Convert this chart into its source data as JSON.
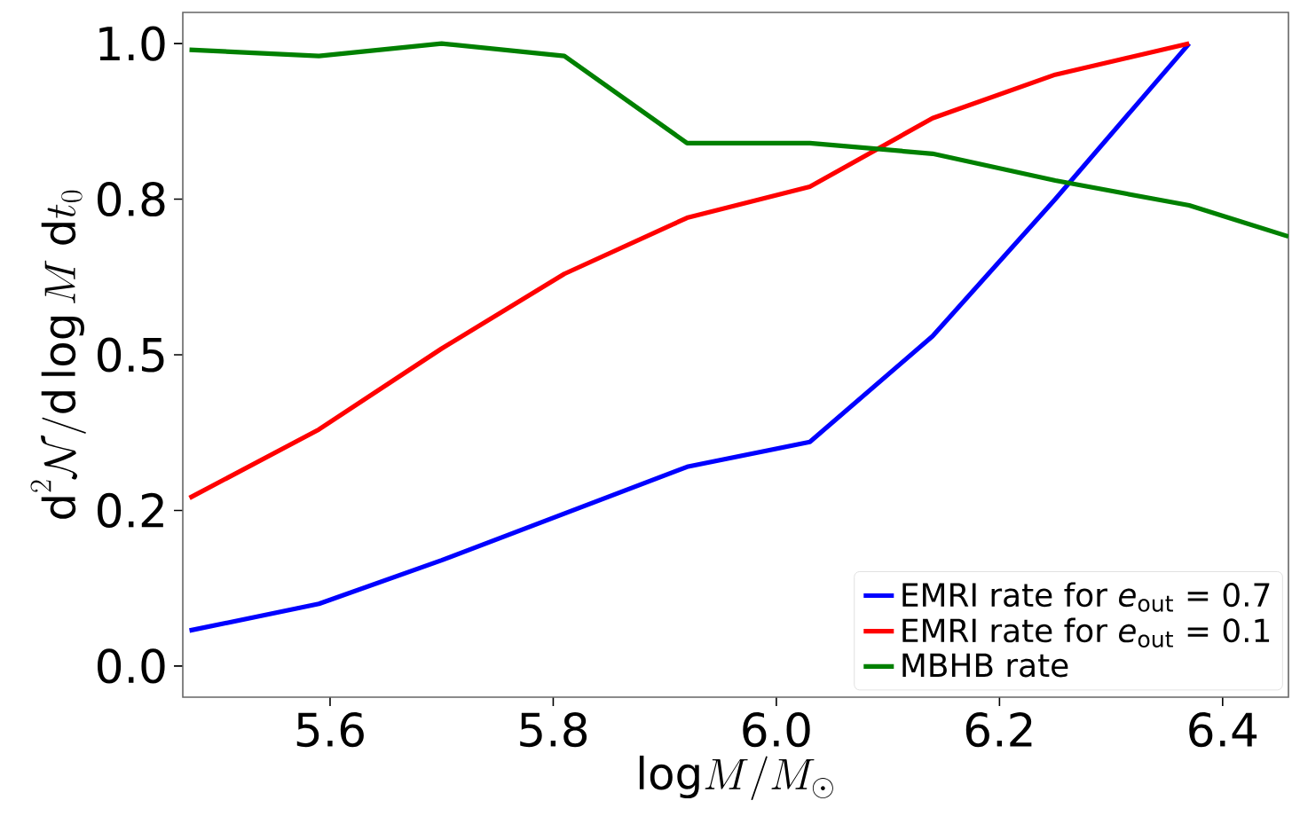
{
  "chart_data": {
    "type": "line",
    "xlabel": "\\mathrm{log}M/M_{\\odot}",
    "ylabel": "\\mathrm{d}^2\\mathcal{N}/\\mathrm{d}\\log M\\;\\mathrm{d}t_0",
    "x": [
      5.474,
      5.59,
      5.7,
      5.81,
      5.92,
      6.03,
      6.14,
      6.25,
      6.37
    ],
    "series": [
      {
        "name": "EMRI rate for *e*$_{out}$ = 0.7",
        "color": "#0000ff",
        "values": [
          0.057,
          0.1,
          0.17,
          0.245,
          0.32,
          0.36,
          0.53,
          0.75,
          1.0
        ]
      },
      {
        "name": "EMRI rate for *e*$_{out}$ = 0.1",
        "color": "#ff0000",
        "values": [
          0.27,
          0.38,
          0.51,
          0.63,
          0.72,
          0.77,
          0.88,
          0.95,
          1.0
        ]
      },
      {
        "name": "MBHB rate",
        "color": "#008000",
        "x": [
          5.474,
          5.59,
          5.7,
          5.81,
          5.92,
          6.03,
          6.14,
          6.25,
          6.37,
          6.459
        ],
        "values": [
          0.99,
          0.98,
          1.0,
          0.98,
          0.84,
          0.84,
          0.823,
          0.78,
          0.74,
          0.69
        ]
      }
    ],
    "xlim": [
      5.468,
      6.459
    ],
    "ylim": [
      -0.05,
      1.05
    ],
    "xticks": [
      5.6,
      5.8,
      {
        "value": 6.0,
        "label": "6.0"
      },
      6.2,
      6.4
    ],
    "yticks": [
      {
        "value": 0.0,
        "label": "0.0"
      },
      {
        "value": 0.25,
        "label": "0.2"
      },
      {
        "value": 0.5,
        "label": "0.5"
      },
      {
        "value": 0.75,
        "label": "0.8"
      },
      {
        "value": 1.0,
        "label": "1.0"
      }
    ],
    "grid": false,
    "legend": "bottom right",
    "line_style": "solid",
    "marker": "none"
  }
}
